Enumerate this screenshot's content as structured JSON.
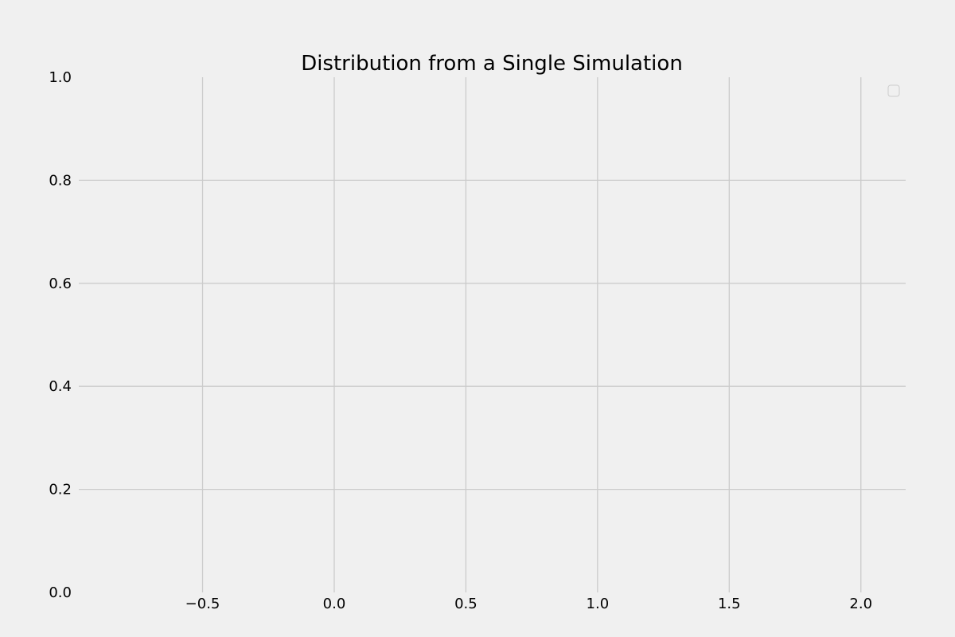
{
  "chart_data": {
    "type": "line",
    "title": "Distribution from a Single Simulation",
    "xlabel": "",
    "ylabel": "",
    "xlim": [
      -0.97,
      2.17
    ],
    "ylim": [
      0.0,
      1.0
    ],
    "x_ticks": [
      -0.5,
      0.0,
      0.5,
      1.0,
      1.5,
      2.0
    ],
    "x_tick_labels": [
      "−0.5",
      "0.0",
      "0.5",
      "1.0",
      "1.5",
      "2.0"
    ],
    "y_ticks": [
      0.0,
      0.2,
      0.4,
      0.6,
      0.8,
      1.0
    ],
    "y_tick_labels": [
      "0.0",
      "0.2",
      "0.4",
      "0.6",
      "0.8",
      "1.0"
    ],
    "series": [],
    "grid": true,
    "legend": "top-right",
    "legend_entries": []
  },
  "colors": {
    "background": "#f0f0f0",
    "grid": "#cbcbcb",
    "text": "#000000",
    "legend_border": "#cccccc"
  }
}
